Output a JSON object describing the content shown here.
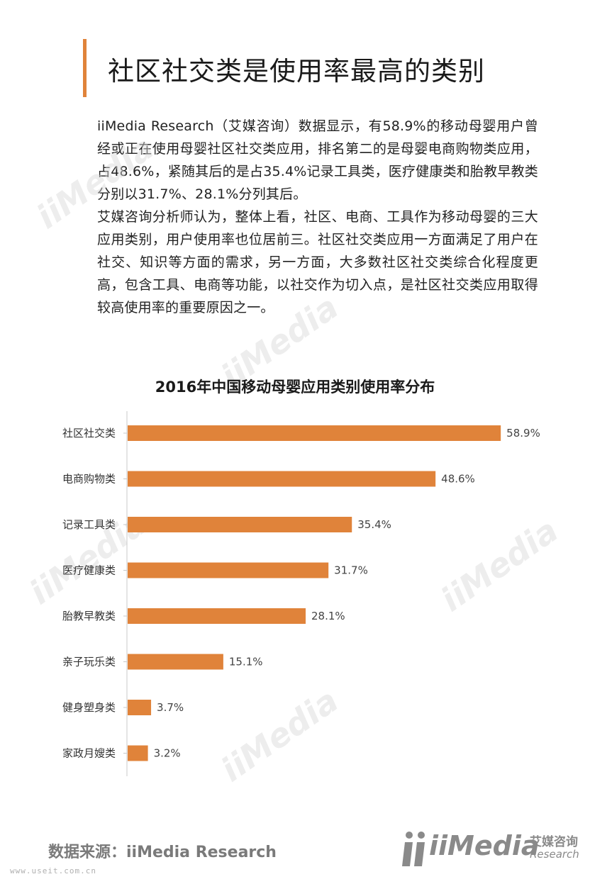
{
  "page": {
    "title": "社区社交类是使用率最高的类别",
    "paragraphs": [
      "iiMedia Research（艾媒咨询）数据显示，有58.9%的移动母婴用户曾经或正在使用母婴社区社交类应用，排名第二的是母婴电商购物类应用，占48.6%，紧随其后的是占35.4%记录工具类，医疗健康类和胎教早教类分别以31.7%、28.1%分列其后。",
      "艾媒咨询分析师认为，整体上看，社区、电商、工具作为移动母婴的三大应用类别，用户使用率也位居前三。社区社交类应用一方面满足了用户在社交、知识等方面的需求，另一方面，大多数社区社交类综合化程度更高，包含工具、电商等功能，以社交作为切入点，是社区社交类应用取得较高使用率的重要原因之一。"
    ],
    "source": "数据来源：iiMedia Research",
    "logo": {
      "text": "iiMedia",
      "cn": "艾媒咨询",
      "en": "Research"
    },
    "footer_url": "www.useit.com.cn",
    "watermark": "iiMedia"
  },
  "chart_data": {
    "type": "bar",
    "orientation": "horizontal",
    "title": "2016年中国移动母婴应用类别使用率分布",
    "categories": [
      "社区社交类",
      "电商购物类",
      "记录工具类",
      "医疗健康类",
      "胎教早教类",
      "亲子玩乐类",
      "健身塑身类",
      "家政月嫂类"
    ],
    "values": [
      58.9,
      48.6,
      35.4,
      31.7,
      28.1,
      15.1,
      3.7,
      3.2
    ],
    "value_labels": [
      "58.9%",
      "48.6%",
      "35.4%",
      "31.7%",
      "28.1%",
      "15.1%",
      "3.7%",
      "3.2%"
    ],
    "xlim": [
      0,
      60
    ],
    "grid": false,
    "bar_color": "#e0833a"
  }
}
